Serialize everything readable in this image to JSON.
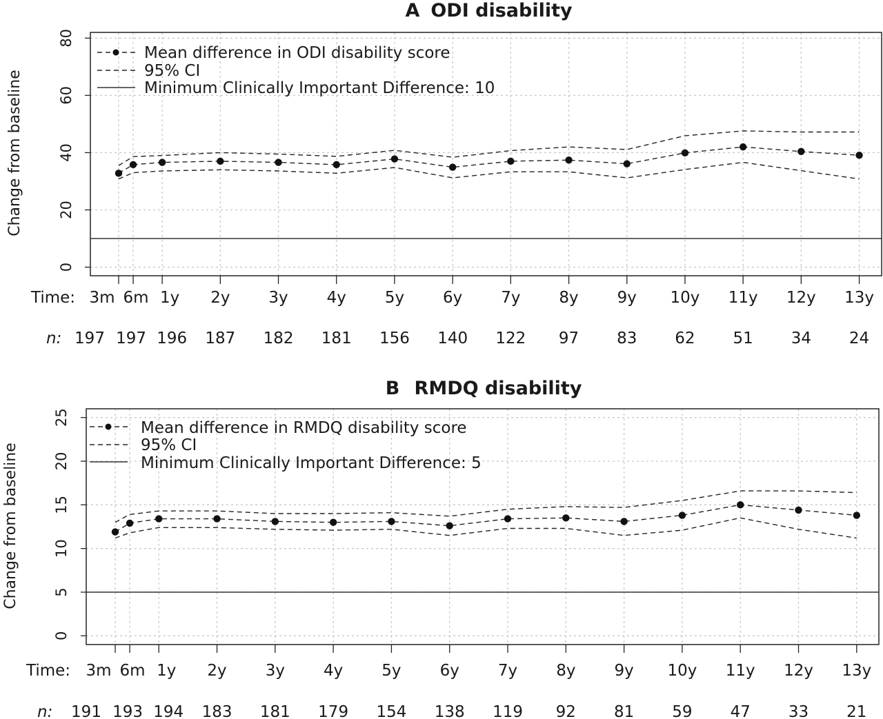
{
  "chart_data": [
    {
      "type": "line",
      "panel_letter": "A",
      "title": "ODI disability",
      "ylabel": "Change from baseline",
      "ylim": [
        -3,
        82
      ],
      "yticks": [
        0,
        20,
        40,
        60,
        80
      ],
      "x_title_label": "Time:",
      "n_title_label": "n:",
      "x": [
        0.25,
        0.5,
        1,
        2,
        3,
        4,
        5,
        6,
        7,
        8,
        9,
        10,
        11,
        12,
        13
      ],
      "categories": [
        "3m",
        "6m",
        "1y",
        "2y",
        "3y",
        "4y",
        "5y",
        "6y",
        "7y",
        "8y",
        "9y",
        "10y",
        "11y",
        "12y",
        "13y"
      ],
      "n": [
        "197",
        "197",
        "196",
        "187",
        "182",
        "181",
        "156",
        "140",
        "122",
        "97",
        "83",
        "62",
        "51",
        "34",
        "24"
      ],
      "series": [
        {
          "name": "Mean difference in ODI disability score",
          "values": [
            32.8,
            35.8,
            36.6,
            37.0,
            36.6,
            35.8,
            37.8,
            34.9,
            37.0,
            37.4,
            36.1,
            39.9,
            42.0,
            40.4,
            39.1
          ]
        },
        {
          "name": "95% CI",
          "upper": [
            35.5,
            38.6,
            39.0,
            40.0,
            39.5,
            38.7,
            40.8,
            38.4,
            40.7,
            42.0,
            41.1,
            45.9,
            47.6,
            47.2,
            47.2
          ],
          "lower": [
            30.8,
            33.0,
            33.6,
            34.0,
            33.6,
            32.8,
            34.8,
            31.2,
            33.3,
            33.3,
            31.2,
            34.1,
            36.6,
            33.7,
            30.8
          ]
        }
      ],
      "reference": {
        "name": "Minimum Clinically Important Difference: 10",
        "value": 10
      },
      "grid": true,
      "legend": "top-left"
    },
    {
      "type": "line",
      "panel_letter": "B",
      "title": "RMDQ disability",
      "ylabel": "Change from baseline",
      "ylim": [
        -1,
        26
      ],
      "yticks": [
        0,
        5,
        10,
        15,
        20,
        25
      ],
      "x_title_label": "Time:",
      "n_title_label": "n:",
      "x": [
        0.25,
        0.5,
        1,
        2,
        3,
        4,
        5,
        6,
        7,
        8,
        9,
        10,
        11,
        12,
        13
      ],
      "categories": [
        "3m",
        "6m",
        "1y",
        "2y",
        "3y",
        "4y",
        "5y",
        "6y",
        "7y",
        "8y",
        "9y",
        "10y",
        "11y",
        "12y",
        "13y"
      ],
      "n": [
        "191",
        "193",
        "194",
        "183",
        "181",
        "179",
        "154",
        "138",
        "119",
        "92",
        "81",
        "59",
        "47",
        "33",
        "21"
      ],
      "series": [
        {
          "name": "Mean difference in RMDQ disability score",
          "values": [
            11.9,
            12.9,
            13.4,
            13.4,
            13.1,
            13.0,
            13.1,
            12.6,
            13.4,
            13.5,
            13.1,
            13.8,
            15.0,
            14.4,
            13.8
          ]
        },
        {
          "name": "95% CI",
          "upper": [
            13.0,
            13.9,
            14.3,
            14.3,
            14.0,
            14.0,
            14.1,
            13.7,
            14.5,
            14.8,
            14.7,
            15.5,
            16.6,
            16.6,
            16.4
          ],
          "lower": [
            11.2,
            11.8,
            12.4,
            12.4,
            12.2,
            12.1,
            12.2,
            11.5,
            12.3,
            12.3,
            11.5,
            12.1,
            13.5,
            12.2,
            11.2
          ]
        }
      ],
      "reference": {
        "name": "Minimum Clinically Important Difference: 5",
        "value": 5
      },
      "grid": true,
      "legend": "top-left"
    }
  ]
}
